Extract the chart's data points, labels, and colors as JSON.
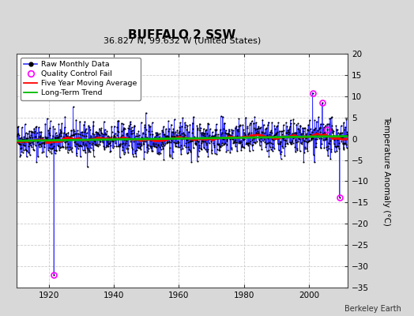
{
  "title": "BUFFALO 2 SSW",
  "subtitle": "36.827 N, 99.632 W (United States)",
  "ylabel": "Temperature Anomaly (°C)",
  "credit": "Berkeley Earth",
  "xlim": [
    1910,
    2012
  ],
  "ylim": [
    -35,
    20
  ],
  "yticks": [
    -35,
    -30,
    -25,
    -20,
    -15,
    -10,
    -5,
    0,
    5,
    10,
    15,
    20
  ],
  "xticks": [
    1920,
    1940,
    1960,
    1980,
    2000
  ],
  "fig_facecolor": "#d8d8d8",
  "plot_facecolor": "#ffffff",
  "raw_color": "#3333ff",
  "dot_color": "#000000",
  "ma_color": "#ff0000",
  "trend_color": "#00bb00",
  "qc_color": "#ff00ff",
  "grid_color": "#cccccc",
  "seed": 42,
  "start_year": 1910,
  "end_year": 2011,
  "monthly_std": 2.0,
  "ma_window": 60,
  "qc_points": [
    {
      "year": 1921.5,
      "value": -32.0
    },
    {
      "year": 2001.2,
      "value": 10.8
    },
    {
      "year": 2004.2,
      "value": 8.4
    },
    {
      "year": 2009.5,
      "value": -13.8
    },
    {
      "year": 2005.8,
      "value": 2.2
    }
  ]
}
